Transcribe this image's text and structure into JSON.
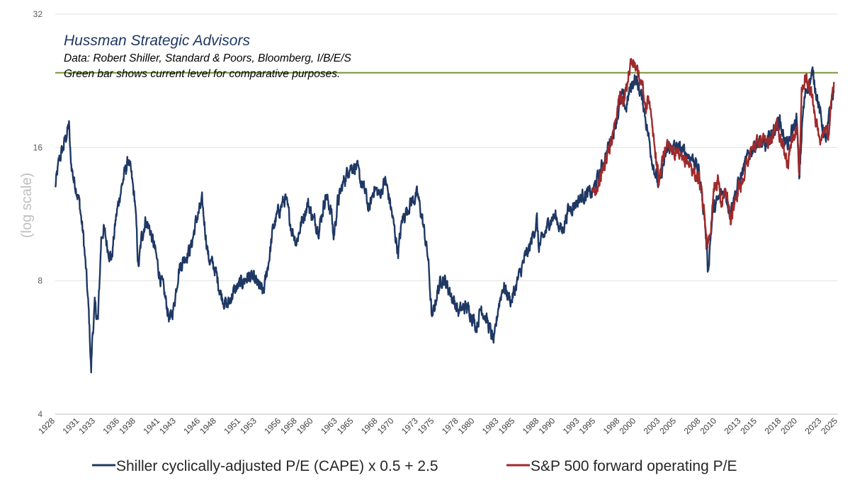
{
  "chart_data": {
    "type": "line",
    "yscale": "log2",
    "ylim": [
      4,
      32
    ],
    "yticks": [
      "4",
      "8",
      "16",
      "32"
    ],
    "ylabel": "(log scale)",
    "xlim": [
      1928,
      2025
    ],
    "xticks": [
      "1928",
      "1931",
      "1933",
      "1936",
      "1938",
      "1941",
      "1943",
      "1946",
      "1948",
      "1951",
      "1953",
      "1956",
      "1958",
      "1960",
      "1963",
      "1965",
      "1968",
      "1970",
      "1973",
      "1975",
      "1978",
      "1980",
      "1983",
      "1985",
      "1988",
      "1990",
      "1993",
      "1995",
      "1998",
      "2000",
      "2003",
      "2005",
      "2008",
      "2010",
      "2013",
      "2015",
      "2018",
      "2020",
      "2023",
      "2025"
    ],
    "annotations": {
      "title": "Hussman Strategic Advisors",
      "line1": "Data: Robert Shiller, Standard & Poors, Bloomberg, I/B/E/S",
      "line2": "Green bar shows current level for comparative purposes."
    },
    "reference_line": {
      "y": 23.6,
      "color": "#77933c"
    },
    "series": [
      {
        "name": "Shiller cyclically-adjusted P/E (CAPE) x 0.5 + 2.5",
        "color": "#1f3864",
        "points": [
          [
            1928,
            13
          ],
          [
            1928.5,
            15
          ],
          [
            1929.0,
            16
          ],
          [
            1929.7,
            18
          ],
          [
            1929.9,
            15
          ],
          [
            1930.3,
            13.5
          ],
          [
            1930.6,
            13
          ],
          [
            1931,
            12
          ],
          [
            1931.5,
            10
          ],
          [
            1931.9,
            8
          ],
          [
            1932.2,
            6.5
          ],
          [
            1932.45,
            5
          ],
          [
            1932.6,
            6
          ],
          [
            1932.9,
            7
          ],
          [
            1933.3,
            6.5
          ],
          [
            1933.7,
            10
          ],
          [
            1934,
            10.5
          ],
          [
            1934.5,
            9.5
          ],
          [
            1935,
            9
          ],
          [
            1935.5,
            11
          ],
          [
            1936,
            12.5
          ],
          [
            1936.6,
            14
          ],
          [
            1937.1,
            15
          ],
          [
            1937.5,
            13.5
          ],
          [
            1937.9,
            12
          ],
          [
            1938.3,
            8.5
          ],
          [
            1938.7,
            10
          ],
          [
            1939.2,
            11
          ],
          [
            1939.7,
            10.5
          ],
          [
            1940.3,
            9.5
          ],
          [
            1940.8,
            8.5
          ],
          [
            1941.5,
            7.5
          ],
          [
            1942.2,
            6.5
          ],
          [
            1942.7,
            7
          ],
          [
            1943.3,
            8.5
          ],
          [
            1944,
            9
          ],
          [
            1944.8,
            9.5
          ],
          [
            1945.5,
            11
          ],
          [
            1946.2,
            12
          ],
          [
            1946.7,
            10
          ],
          [
            1947,
            9
          ],
          [
            1947.8,
            8.5
          ],
          [
            1948.5,
            7.5
          ],
          [
            1949.3,
            7
          ],
          [
            1950,
            7.5
          ],
          [
            1951,
            7.9
          ],
          [
            1952,
            8.2
          ],
          [
            1953,
            7.9
          ],
          [
            1953.8,
            7.5
          ],
          [
            1954.5,
            9
          ],
          [
            1955,
            10.5
          ],
          [
            1955.7,
            11.5
          ],
          [
            1956.5,
            12.3
          ],
          [
            1957.3,
            10.5
          ],
          [
            1957.9,
            9.8
          ],
          [
            1958.5,
            10.8
          ],
          [
            1959.3,
            12
          ],
          [
            1960,
            11
          ],
          [
            1960.7,
            10.5
          ],
          [
            1961.5,
            12.5
          ],
          [
            1962.2,
            11.5
          ],
          [
            1962.5,
            10
          ],
          [
            1963,
            12
          ],
          [
            1963.8,
            13.5
          ],
          [
            1964.5,
            14.5
          ],
          [
            1965.3,
            14.5
          ],
          [
            1965.8,
            13.5
          ],
          [
            1966.5,
            12.5
          ],
          [
            1966.9,
            11.5
          ],
          [
            1967.5,
            13
          ],
          [
            1968.2,
            12.5
          ],
          [
            1968.9,
            13.5
          ],
          [
            1969.5,
            12
          ],
          [
            1970.2,
            10
          ],
          [
            1970.5,
            9.3
          ],
          [
            1971,
            11
          ],
          [
            1972,
            12
          ],
          [
            1972.9,
            12.5
          ],
          [
            1973.5,
            11
          ],
          [
            1974.2,
            9
          ],
          [
            1974.7,
            6.5
          ],
          [
            1975.3,
            7.5
          ],
          [
            1976,
            8.2
          ],
          [
            1977,
            7.5
          ],
          [
            1978,
            6.8
          ],
          [
            1978.8,
            7
          ],
          [
            1979.5,
            6.8
          ],
          [
            1980.2,
            6.3
          ],
          [
            1980.8,
            7
          ],
          [
            1981.5,
            6.5
          ],
          [
            1982.4,
            5.8
          ],
          [
            1982.9,
            7
          ],
          [
            1983.5,
            7.8
          ],
          [
            1984.5,
            7.2
          ],
          [
            1985.5,
            8.2
          ],
          [
            1986.2,
            9
          ],
          [
            1986.8,
            9.5
          ],
          [
            1987.7,
            11
          ],
          [
            1987.9,
            9.5
          ],
          [
            1988.5,
            10
          ],
          [
            1989.3,
            11
          ],
          [
            1990,
            11.2
          ],
          [
            1990.8,
            10.3
          ],
          [
            1991.5,
            11.5
          ],
          [
            1992.5,
            12
          ],
          [
            1993.5,
            12.5
          ],
          [
            1994.5,
            12.6
          ],
          [
            1995.5,
            14
          ],
          [
            1996.3,
            15.5
          ],
          [
            1997,
            17
          ],
          [
            1997.7,
            19
          ],
          [
            1998.3,
            21
          ],
          [
            1998.7,
            19.5
          ],
          [
            1999.2,
            21.5
          ],
          [
            1999.8,
            23
          ],
          [
            2000.3,
            22
          ],
          [
            2000.9,
            20
          ],
          [
            2001.5,
            17
          ],
          [
            2002,
            15
          ],
          [
            2002.8,
            13
          ],
          [
            2003.3,
            14.5
          ],
          [
            2004,
            16
          ],
          [
            2004.8,
            16
          ],
          [
            2005.5,
            15.8
          ],
          [
            2006.3,
            15.5
          ],
          [
            2007.2,
            15
          ],
          [
            2007.8,
            14
          ],
          [
            2008.5,
            11
          ],
          [
            2008.9,
            8.4
          ],
          [
            2009.2,
            10
          ],
          [
            2009.5,
            11.5
          ],
          [
            2010.5,
            12.5
          ],
          [
            2011,
            12.8
          ],
          [
            2011.6,
            11.5
          ],
          [
            2012.2,
            12.5
          ],
          [
            2013,
            13.8
          ],
          [
            2014,
            15.5
          ],
          [
            2015,
            16.5
          ],
          [
            2016,
            16
          ],
          [
            2017,
            17.5
          ],
          [
            2017.8,
            18.5
          ],
          [
            2018.2,
            17
          ],
          [
            2018.9,
            16
          ],
          [
            2019.3,
            17.5
          ],
          [
            2019.9,
            18.5
          ],
          [
            2020.2,
            13.5
          ],
          [
            2020.6,
            18.5
          ],
          [
            2021,
            21.5
          ],
          [
            2021.9,
            23.5
          ],
          [
            2022.4,
            21
          ],
          [
            2022.8,
            19
          ],
          [
            2023.2,
            17.5
          ],
          [
            2023.6,
            16.5
          ],
          [
            2024,
            19.5
          ],
          [
            2024.5,
            21.5
          ]
        ]
      },
      {
        "name": "S&P 500 forward operating P/E",
        "color": "#9e2a2b",
        "points": [
          [
            1994.5,
            12.4
          ],
          [
            1995,
            13
          ],
          [
            1995.5,
            13.5
          ],
          [
            1996,
            14.5
          ],
          [
            1996.5,
            15.5
          ],
          [
            1997,
            17
          ],
          [
            1997.5,
            19
          ],
          [
            1998,
            21
          ],
          [
            1998.5,
            20
          ],
          [
            1998.8,
            22
          ],
          [
            1999.3,
            25
          ],
          [
            1999.8,
            24.5
          ],
          [
            2000.3,
            23
          ],
          [
            2000.8,
            22
          ],
          [
            2001.2,
            19
          ],
          [
            2001.5,
            21.5
          ],
          [
            2001.9,
            18
          ],
          [
            2002.5,
            15
          ],
          [
            2002.8,
            13.5
          ],
          [
            2003.3,
            15
          ],
          [
            2003.8,
            16.5
          ],
          [
            2004.5,
            16
          ],
          [
            2005,
            15.3
          ],
          [
            2005.8,
            14.8
          ],
          [
            2006.3,
            15
          ],
          [
            2007,
            14.2
          ],
          [
            2007.8,
            13.5
          ],
          [
            2008.5,
            11
          ],
          [
            2008.9,
            9.5
          ],
          [
            2009.3,
            11
          ],
          [
            2009.6,
            13
          ],
          [
            2010.2,
            13.5
          ],
          [
            2010.5,
            12
          ],
          [
            2011.2,
            12.8
          ],
          [
            2011.7,
            10.8
          ],
          [
            2012.3,
            12.5
          ],
          [
            2013,
            13.2
          ],
          [
            2013.8,
            15
          ],
          [
            2014.5,
            16
          ],
          [
            2015.3,
            16.5
          ],
          [
            2016.2,
            16.2
          ],
          [
            2016.9,
            17.5
          ],
          [
            2017.6,
            18
          ],
          [
            2018.1,
            16.5
          ],
          [
            2018.8,
            14.5
          ],
          [
            2019.2,
            16.5
          ],
          [
            2019.9,
            17.5
          ],
          [
            2020.2,
            13.8
          ],
          [
            2020.5,
            21.5
          ],
          [
            2020.9,
            23
          ],
          [
            2021.6,
            21.5
          ],
          [
            2022.2,
            19
          ],
          [
            2022.8,
            15.8
          ],
          [
            2023.3,
            18
          ],
          [
            2023.8,
            17
          ],
          [
            2024.2,
            21
          ],
          [
            2024.5,
            22.5
          ]
        ]
      }
    ]
  },
  "legend": [
    {
      "label": "Shiller cyclically-adjusted P/E (CAPE) x 0.5 + 2.5",
      "color": "#1f3864"
    },
    {
      "label": "S&P 500 forward operating P/E",
      "color": "#9e2a2b"
    }
  ]
}
